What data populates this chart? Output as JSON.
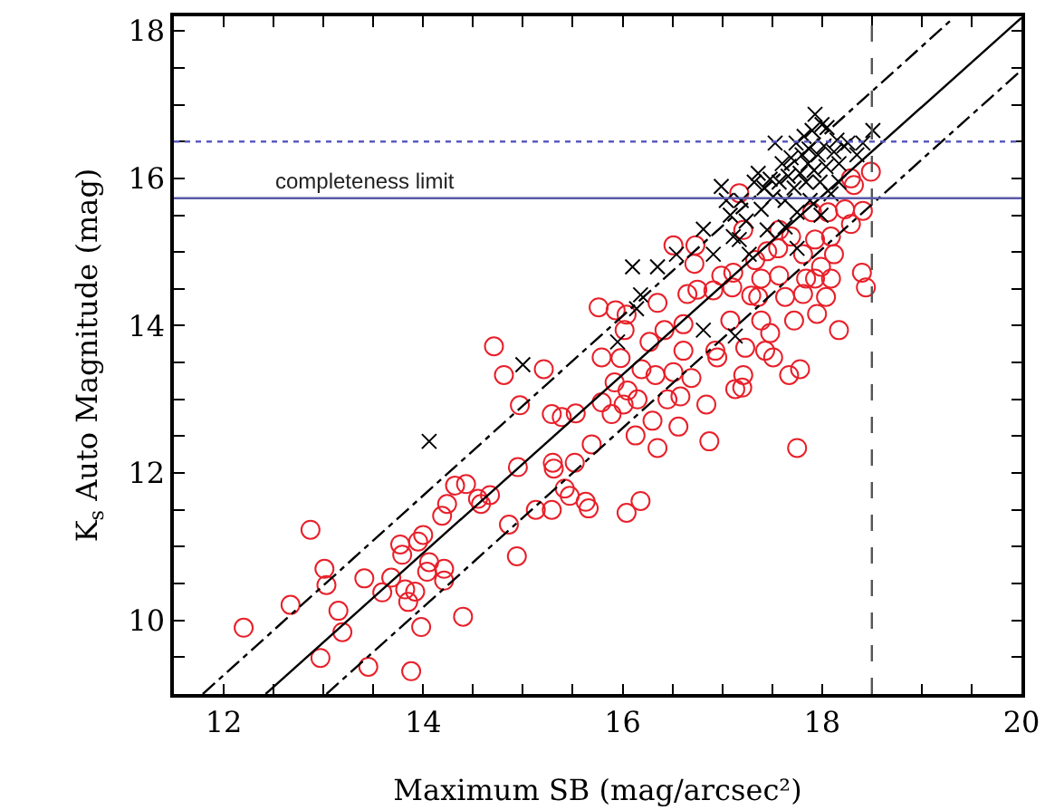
{
  "chart_data": {
    "type": "scatter",
    "xlabel": "Maximum SB (mag/arcsec²)",
    "ylabel": "K$_{s}$ Auto Magnitude (mag)",
    "xlim": [
      11.5,
      20
    ],
    "ylim": [
      9,
      18.2
    ],
    "xticks": [
      {
        "value": 11.5,
        "label": null
      },
      12,
      {
        "value": 12.5,
        "label": null
      },
      {
        "value": 13,
        "label": null
      },
      {
        "value": 13.5,
        "label": null
      },
      14,
      {
        "value": 14.5,
        "label": null
      },
      {
        "value": 15,
        "label": null
      },
      {
        "value": 15.5,
        "label": null
      },
      16,
      {
        "value": 16.5,
        "label": null
      },
      {
        "value": 17,
        "label": null
      },
      {
        "value": 17.5,
        "label": null
      },
      18,
      {
        "value": 18.5,
        "label": null
      },
      {
        "value": 19,
        "label": null
      },
      {
        "value": 19.5,
        "label": null
      },
      20
    ],
    "yticks": [
      {
        "value": 9.5,
        "label": null
      },
      10,
      {
        "value": 10.5,
        "label": null
      },
      {
        "value": 11,
        "label": null
      },
      {
        "value": 11.5,
        "label": null
      },
      12,
      {
        "value": 12.5,
        "label": null
      },
      {
        "value": 13,
        "label": null
      },
      {
        "value": 13.5,
        "label": null
      },
      14,
      {
        "value": 14.5,
        "label": null
      },
      {
        "value": 15,
        "label": null
      },
      {
        "value": 15.5,
        "label": null
      },
      16,
      {
        "value": 16.5,
        "label": null
      },
      {
        "value": 17,
        "label": null
      },
      {
        "value": 17.5,
        "label": null
      },
      18
    ],
    "grid": false,
    "series": [
      {
        "marker": "circle",
        "color": "#e8202a",
        "x": [
          12.2,
          12.87,
          12.67,
          13.01,
          13.03,
          13.15,
          13.19,
          12.97,
          13.41,
          13.45,
          13.59,
          13.68,
          13.77,
          13.79,
          13.82,
          13.85,
          13.88,
          13.92,
          13.95,
          14.0,
          13.98,
          14.06,
          14.04,
          14.21,
          14.21,
          14.19,
          14.24,
          14.4,
          14.32,
          14.43,
          14.55,
          14.58,
          14.67,
          14.86,
          14.94,
          14.95,
          14.71,
          14.81,
          14.97,
          15.21,
          15.13,
          15.29,
          15.29,
          15.3,
          15.31,
          15.39,
          15.42,
          15.47,
          15.53,
          15.52,
          15.63,
          15.66,
          15.69,
          15.76,
          15.79,
          15.79,
          15.89,
          15.93,
          15.98,
          15.92,
          16.02,
          16.04,
          16.01,
          16.04,
          16.05,
          16.13,
          16.15,
          16.18,
          16.19,
          16.27,
          16.3,
          16.35,
          16.33,
          16.35,
          16.42,
          16.45,
          16.51,
          16.51,
          16.56,
          16.58,
          16.61,
          16.61,
          16.65,
          16.69,
          16.72,
          16.73,
          16.75,
          16.84,
          16.87,
          16.91,
          16.93,
          16.95,
          17.08,
          17.1,
          17.13,
          17.17,
          17.2,
          17.21,
          17.23,
          17.29,
          17.36,
          17.39,
          17.43,
          17.48,
          17.51,
          17.56,
          17.57,
          17.63,
          17.67,
          17.72,
          17.75,
          17.78,
          17.81,
          17.93,
          17.95,
          17.99,
          18.04,
          18.09,
          18.17,
          18.09,
          18.23,
          18.29,
          18.32,
          18.41,
          18.4,
          18.44,
          18.49,
          18.29,
          17.93,
          17.81,
          17.45,
          17.33,
          17.21,
          17.11,
          17.69,
          18.06,
          17.9,
          17.57,
          17.84,
          18.12,
          17.39,
          16.99
        ],
        "values": [
          9.9,
          11.23,
          10.21,
          10.7,
          10.48,
          10.13,
          9.84,
          9.49,
          10.57,
          9.37,
          10.38,
          10.58,
          11.03,
          10.89,
          10.42,
          10.25,
          9.31,
          10.39,
          11.07,
          11.16,
          9.91,
          10.79,
          10.66,
          10.7,
          10.54,
          11.42,
          11.58,
          10.05,
          11.83,
          11.85,
          11.65,
          11.58,
          11.7,
          11.3,
          10.87,
          12.08,
          13.72,
          13.33,
          12.92,
          13.41,
          11.5,
          11.5,
          12.8,
          12.14,
          12.06,
          12.76,
          11.79,
          11.69,
          12.81,
          12.14,
          11.61,
          11.52,
          12.39,
          14.25,
          13.57,
          12.96,
          12.8,
          14.21,
          13.56,
          13.23,
          13.94,
          14.15,
          12.93,
          11.46,
          13.12,
          12.51,
          13.0,
          11.62,
          13.41,
          13.78,
          12.71,
          12.34,
          13.33,
          14.31,
          13.94,
          13.0,
          13.37,
          15.09,
          12.63,
          13.04,
          13.66,
          14.02,
          14.43,
          13.29,
          14.84,
          15.09,
          14.49,
          12.93,
          12.43,
          14.48,
          13.66,
          13.57,
          14.07,
          14.52,
          13.14,
          15.8,
          13.16,
          13.33,
          13.7,
          14.41,
          14.39,
          14.07,
          13.66,
          13.9,
          13.57,
          15.05,
          14.68,
          14.39,
          13.33,
          14.07,
          12.34,
          13.41,
          14.43,
          14.64,
          14.16,
          14.8,
          14.39,
          14.64,
          13.94,
          15.21,
          15.58,
          15.38,
          15.91,
          15.56,
          14.72,
          14.52,
          16.09,
          16.0,
          15.17,
          14.97,
          15.01,
          14.89,
          15.3,
          14.72,
          15.21,
          15.54,
          15.54,
          15.3,
          14.64,
          14.97,
          14.64,
          14.68
        ]
      },
      {
        "marker": "cross",
        "color": "#000000",
        "x": [
          14.06,
          15.0,
          16.1,
          16.18,
          16.35,
          16.54,
          15.95,
          16.14,
          16.81,
          16.81,
          16.91,
          16.99,
          17.04,
          17.08,
          17.11,
          17.13,
          17.19,
          17.24,
          17.32,
          17.39,
          17.36,
          17.42,
          17.48,
          17.51,
          17.53,
          17.57,
          17.6,
          17.63,
          17.66,
          17.69,
          17.72,
          17.74,
          17.75,
          17.78,
          17.8,
          17.82,
          17.84,
          17.86,
          17.87,
          17.88,
          17.9,
          17.92,
          17.93,
          17.96,
          17.98,
          18.0,
          18.02,
          18.04,
          18.05,
          18.09,
          18.12,
          18.15,
          18.17,
          18.22,
          18.26,
          18.35,
          18.41,
          18.51,
          18.17,
          17.99,
          17.63,
          17.27,
          17.17,
          17.45,
          17.75
        ],
        "values": [
          12.43,
          13.47,
          14.8,
          14.42,
          14.8,
          14.97,
          13.78,
          14.23,
          15.31,
          13.94,
          14.97,
          15.89,
          15.7,
          15.5,
          15.21,
          13.86,
          15.7,
          15.42,
          15.95,
          15.58,
          16.07,
          15.87,
          15.99,
          15.75,
          16.48,
          15.95,
          16.2,
          15.7,
          16.03,
          16.28,
          15.87,
          16.48,
          15.05,
          16.07,
          16.32,
          16.57,
          15.95,
          16.2,
          16.4,
          15.7,
          16.65,
          16.11,
          16.87,
          16.32,
          15.95,
          16.73,
          16.44,
          16.16,
          16.69,
          15.79,
          16.36,
          16.52,
          16.2,
          16.44,
          16.48,
          16.32,
          16.48,
          16.65,
          15.95,
          15.5,
          15.34,
          14.97,
          15.17,
          15.3,
          15.54
        ]
      },
      {
        "type": "line",
        "line_style": "solid",
        "color": "#000000",
        "x": [
          12.42,
          20
        ],
        "values": [
          9,
          18.18
        ]
      },
      {
        "type": "line",
        "line_style": "dashdot",
        "color": "#000000",
        "x": [
          11.79,
          19.32
        ],
        "values": [
          9,
          18.18
        ]
      },
      {
        "type": "line",
        "line_style": "dashdot",
        "color": "#000000",
        "x": [
          13.03,
          20
        ],
        "values": [
          9,
          17.47
        ]
      }
    ],
    "ref_lines": [
      {
        "axis": "x",
        "value": 18.5,
        "color": "#555555",
        "line_style": "dashed"
      },
      {
        "axis": "y",
        "value": 16.5,
        "color": "#5c5cc0",
        "line_style": "dotted"
      },
      {
        "axis": "y",
        "value": 15.73,
        "color": "#5a5aa8",
        "line_style": "solid",
        "label": "completeness limit"
      }
    ]
  }
}
